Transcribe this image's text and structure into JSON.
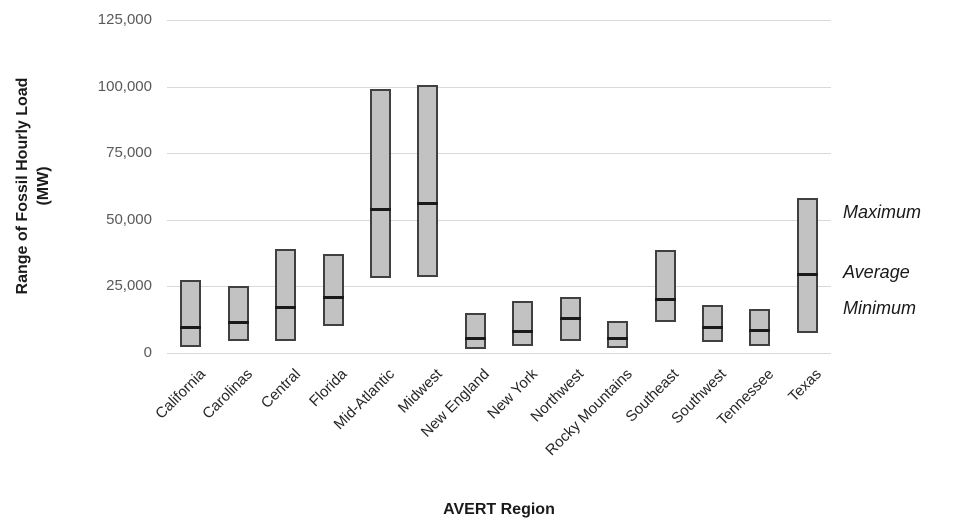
{
  "chart": {
    "ylabel_line1": "Range of Fossil Hourly Load",
    "ylabel_line2": "(MW)",
    "xlabel": "AVERT Region"
  },
  "chart_data": {
    "type": "bar",
    "subtype": "floating-range-min-avg-max",
    "title": "",
    "xlabel": "AVERT Region",
    "ylabel": "Range of Fossil Hourly Load (MW)",
    "ylim": [
      0,
      125000
    ],
    "yticks": [
      0,
      25000,
      50000,
      75000,
      100000,
      125000
    ],
    "ytick_labels": [
      "0",
      "25,000",
      "50,000",
      "75,000",
      "100,000",
      "125,000"
    ],
    "grid": "horizontal",
    "categories": [
      "California",
      "Carolinas",
      "Central",
      "Florida",
      "Mid-Atlantic",
      "Midwest",
      "New England",
      "New York",
      "Northwest",
      "Rocky Mountains",
      "Southeast",
      "Southwest",
      "Tennessee",
      "Texas"
    ],
    "series": [
      {
        "name": "Minimum",
        "values": [
          2500,
          4500,
          4500,
          10000,
          28000,
          28500,
          1500,
          2500,
          4500,
          2000,
          11500,
          4000,
          2500,
          7500
        ]
      },
      {
        "name": "Average",
        "values": [
          9500,
          11500,
          17000,
          21000,
          54000,
          56000,
          5500,
          8000,
          13000,
          5500,
          20000,
          9500,
          8500,
          29500
        ]
      },
      {
        "name": "Maximum",
        "values": [
          27500,
          25000,
          39000,
          37000,
          99000,
          100500,
          15000,
          19500,
          21000,
          12000,
          38500,
          18000,
          16500,
          58000
        ]
      }
    ],
    "annotations": [
      {
        "label": "Maximum"
      },
      {
        "label": "Average"
      },
      {
        "label": "Minimum"
      }
    ],
    "legend_position": "right-annotations",
    "colors": {
      "bar_fill": "#c2c2c2",
      "bar_border": "#404040",
      "average_line": "#1a1a1a",
      "gridline": "#d9d9d9",
      "tick_text": "#595959",
      "title_text": "#1a1a1a"
    }
  }
}
